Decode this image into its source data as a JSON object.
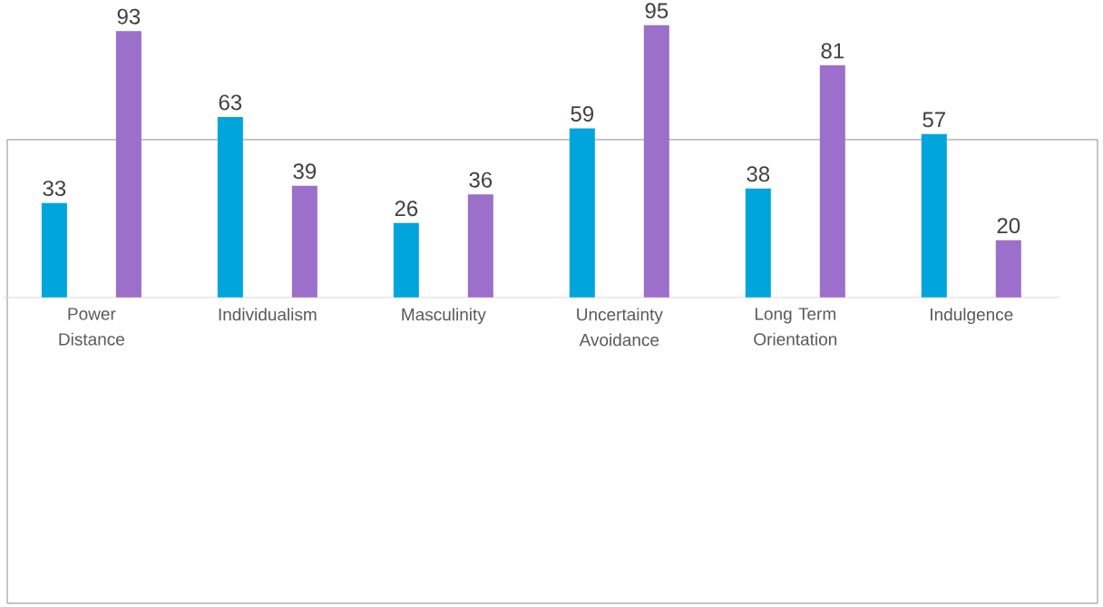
{
  "chart_data": {
    "type": "bar",
    "categories": [
      "Power Distance",
      "Individualism",
      "Masculinity",
      "Uncertainty Avoidance",
      "Long Term Orientation",
      "Indulgence"
    ],
    "series": [
      {
        "color": "#00a5dc",
        "values": [
          33,
          63,
          26,
          59,
          38,
          57
        ]
      },
      {
        "color": "#9b6fca",
        "values": [
          93,
          39,
          36,
          95,
          81,
          20
        ]
      }
    ],
    "data_labels": true
  }
}
